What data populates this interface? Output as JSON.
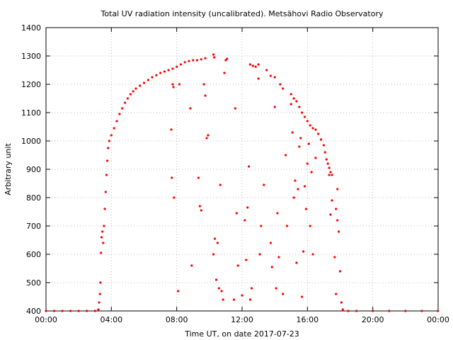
{
  "chart_data": {
    "type": "scatter",
    "title": "Total UV radiation intensity (uncalibrated). Metsähovi Radio Observatory",
    "xlabel": "Time UT, on date 2017-07-23",
    "ylabel": "Arbitrary unit",
    "xlim": [
      "00:00",
      "24:00"
    ],
    "ylim": [
      400,
      1400
    ],
    "x_ticks": [
      "00:00",
      "04:00",
      "08:00",
      "12:00",
      "16:00",
      "20:00",
      "00:00"
    ],
    "y_ticks": [
      400,
      500,
      600,
      700,
      800,
      900,
      1000,
      1100,
      1200,
      1300,
      1400
    ],
    "grid": true,
    "legend": "none",
    "point_color": "#ff0000",
    "series": [
      {
        "values": [
          [
            "00:00",
            400
          ],
          [
            "00:30",
            400
          ],
          [
            "01:00",
            400
          ],
          [
            "01:30",
            400
          ],
          [
            "02:00",
            400
          ],
          [
            "02:30",
            400
          ],
          [
            "03:00",
            400
          ],
          [
            "03:12",
            405
          ],
          [
            "03:15",
            430
          ],
          [
            "03:18",
            460
          ],
          [
            "03:20",
            500
          ],
          [
            "03:22",
            605
          ],
          [
            "03:24",
            660
          ],
          [
            "03:27",
            680
          ],
          [
            "03:30",
            640
          ],
          [
            "03:33",
            700
          ],
          [
            "03:36",
            760
          ],
          [
            "03:39",
            820
          ],
          [
            "03:42",
            880
          ],
          [
            "03:45",
            930
          ],
          [
            "03:48",
            975
          ],
          [
            "03:52",
            1000
          ],
          [
            "04:00",
            1020
          ],
          [
            "04:10",
            1045
          ],
          [
            "04:20",
            1070
          ],
          [
            "04:30",
            1095
          ],
          [
            "04:40",
            1115
          ],
          [
            "04:50",
            1135
          ],
          [
            "05:00",
            1150
          ],
          [
            "05:10",
            1165
          ],
          [
            "05:20",
            1175
          ],
          [
            "05:30",
            1185
          ],
          [
            "05:45",
            1195
          ],
          [
            "06:00",
            1205
          ],
          [
            "06:15",
            1215
          ],
          [
            "06:30",
            1225
          ],
          [
            "06:45",
            1232
          ],
          [
            "07:00",
            1240
          ],
          [
            "07:15",
            1245
          ],
          [
            "07:30",
            1250
          ],
          [
            "07:45",
            1255
          ],
          [
            "08:00",
            1262
          ],
          [
            "08:15",
            1270
          ],
          [
            "08:30",
            1278
          ],
          [
            "08:45",
            1282
          ],
          [
            "09:00",
            1285
          ],
          [
            "09:15",
            1285
          ],
          [
            "09:30",
            1288
          ],
          [
            "09:45",
            1292
          ],
          [
            "10:15",
            1305
          ],
          [
            "10:18",
            1295
          ],
          [
            "11:00",
            1285
          ],
          [
            "11:05",
            1290
          ],
          [
            "12:30",
            1270
          ],
          [
            "12:40",
            1265
          ],
          [
            "12:50",
            1262
          ],
          [
            "13:00",
            1270
          ],
          [
            "13:30",
            1250
          ],
          [
            "13:45",
            1230
          ],
          [
            "14:00",
            1225
          ],
          [
            "14:20",
            1200
          ],
          [
            "14:30",
            1185
          ],
          [
            "15:00",
            1165
          ],
          [
            "15:10",
            1150
          ],
          [
            "15:20",
            1140
          ],
          [
            "15:30",
            1120
          ],
          [
            "15:40",
            1100
          ],
          [
            "15:50",
            1085
          ],
          [
            "16:00",
            1070
          ],
          [
            "16:10",
            1055
          ],
          [
            "16:20",
            1045
          ],
          [
            "16:30",
            1040
          ],
          [
            "16:40",
            1025
          ],
          [
            "16:50",
            1005
          ],
          [
            "17:00",
            985
          ],
          [
            "17:05",
            960
          ],
          [
            "17:10",
            935
          ],
          [
            "17:15",
            920
          ],
          [
            "17:20",
            905
          ],
          [
            "17:25",
            890
          ],
          [
            "17:30",
            880
          ],
          [
            "17:45",
            760
          ],
          [
            "17:50",
            720
          ],
          [
            "17:55",
            680
          ],
          [
            "18:00",
            540
          ],
          [
            "18:05",
            430
          ],
          [
            "18:10",
            405
          ],
          [
            "18:30",
            400
          ],
          [
            "19:00",
            400
          ],
          [
            "20:00",
            400
          ],
          [
            "21:00",
            400
          ],
          [
            "22:00",
            400
          ],
          [
            "23:00",
            400
          ],
          [
            "23:59",
            400
          ],
          [
            "07:40",
            1040
          ],
          [
            "07:42",
            870
          ],
          [
            "07:50",
            800
          ],
          [
            "07:45",
            1200
          ],
          [
            "07:48",
            1190
          ],
          [
            "08:05",
            470
          ],
          [
            "08:10",
            1200
          ],
          [
            "08:50",
            1115
          ],
          [
            "08:55",
            560
          ],
          [
            "09:20",
            870
          ],
          [
            "09:25",
            770
          ],
          [
            "09:30",
            755
          ],
          [
            "09:40",
            1200
          ],
          [
            "09:45",
            1160
          ],
          [
            "09:50",
            1010
          ],
          [
            "09:55",
            1020
          ],
          [
            "10:15",
            600
          ],
          [
            "10:20",
            655
          ],
          [
            "10:25",
            510
          ],
          [
            "10:30",
            640
          ],
          [
            "10:35",
            480
          ],
          [
            "10:40",
            845
          ],
          [
            "10:45",
            470
          ],
          [
            "10:50",
            440
          ],
          [
            "10:55",
            1240
          ],
          [
            "11:30",
            440
          ],
          [
            "11:35",
            1115
          ],
          [
            "11:40",
            745
          ],
          [
            "11:45",
            560
          ],
          [
            "12:00",
            455
          ],
          [
            "12:10",
            720
          ],
          [
            "12:15",
            580
          ],
          [
            "12:20",
            765
          ],
          [
            "12:25",
            910
          ],
          [
            "12:30",
            440
          ],
          [
            "12:35",
            480
          ],
          [
            "13:00",
            1220
          ],
          [
            "13:05",
            600
          ],
          [
            "13:10",
            700
          ],
          [
            "13:20",
            845
          ],
          [
            "13:45",
            640
          ],
          [
            "13:50",
            555
          ],
          [
            "14:00",
            1120
          ],
          [
            "14:05",
            480
          ],
          [
            "14:10",
            745
          ],
          [
            "14:15",
            590
          ],
          [
            "14:30",
            460
          ],
          [
            "14:40",
            950
          ],
          [
            "14:45",
            700
          ],
          [
            "15:00",
            1130
          ],
          [
            "15:05",
            1030
          ],
          [
            "15:10",
            800
          ],
          [
            "15:15",
            860
          ],
          [
            "15:20",
            570
          ],
          [
            "15:25",
            830
          ],
          [
            "15:30",
            980
          ],
          [
            "15:35",
            1010
          ],
          [
            "15:40",
            450
          ],
          [
            "15:45",
            610
          ],
          [
            "15:50",
            840
          ],
          [
            "15:55",
            760
          ],
          [
            "16:00",
            920
          ],
          [
            "16:05",
            990
          ],
          [
            "16:10",
            700
          ],
          [
            "16:15",
            890
          ],
          [
            "16:20",
            600
          ],
          [
            "16:30",
            940
          ],
          [
            "17:20",
            880
          ],
          [
            "17:25",
            740
          ],
          [
            "17:30",
            790
          ],
          [
            "17:40",
            590
          ],
          [
            "17:45",
            460
          ],
          [
            "17:50",
            830
          ]
        ]
      }
    ]
  }
}
